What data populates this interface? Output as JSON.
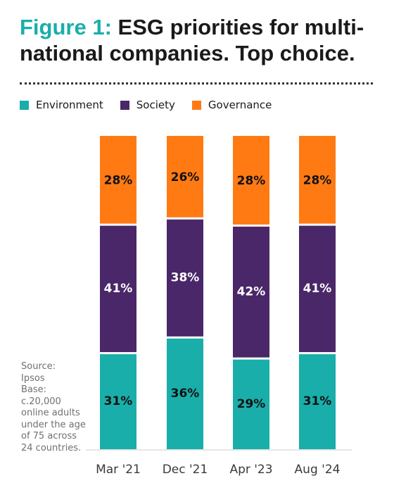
{
  "title": {
    "prefix": "Figure 1:",
    "main": "ESG priorities for multi-national companies. Top choice."
  },
  "source": {
    "source_label": "Source:",
    "source_name": "Ipsos",
    "base_label": "Base:",
    "base_text": "c.20,000 online adults under the age of 75 across 24 countries."
  },
  "colors": {
    "environment": "#1aaeaa",
    "society": "#4a2768",
    "governance": "#ff7a13"
  },
  "chart_data": {
    "type": "bar",
    "stacked": true,
    "categories": [
      "Mar '21",
      "Dec '21",
      "Apr '23",
      "Aug '24"
    ],
    "series": [
      {
        "name": "Environment",
        "values": [
          31,
          36,
          29,
          31
        ],
        "labels": [
          "31%",
          "36%",
          "29%",
          "31%"
        ]
      },
      {
        "name": "Society",
        "values": [
          41,
          38,
          42,
          41
        ],
        "labels": [
          "41%",
          "38%",
          "42%",
          "41%"
        ]
      },
      {
        "name": "Governance",
        "values": [
          28,
          26,
          28,
          28
        ],
        "labels": [
          "28%",
          "26%",
          "28%",
          "28%"
        ]
      }
    ],
    "ylim": [
      0,
      100
    ],
    "grid": false,
    "legend": "top-left"
  }
}
